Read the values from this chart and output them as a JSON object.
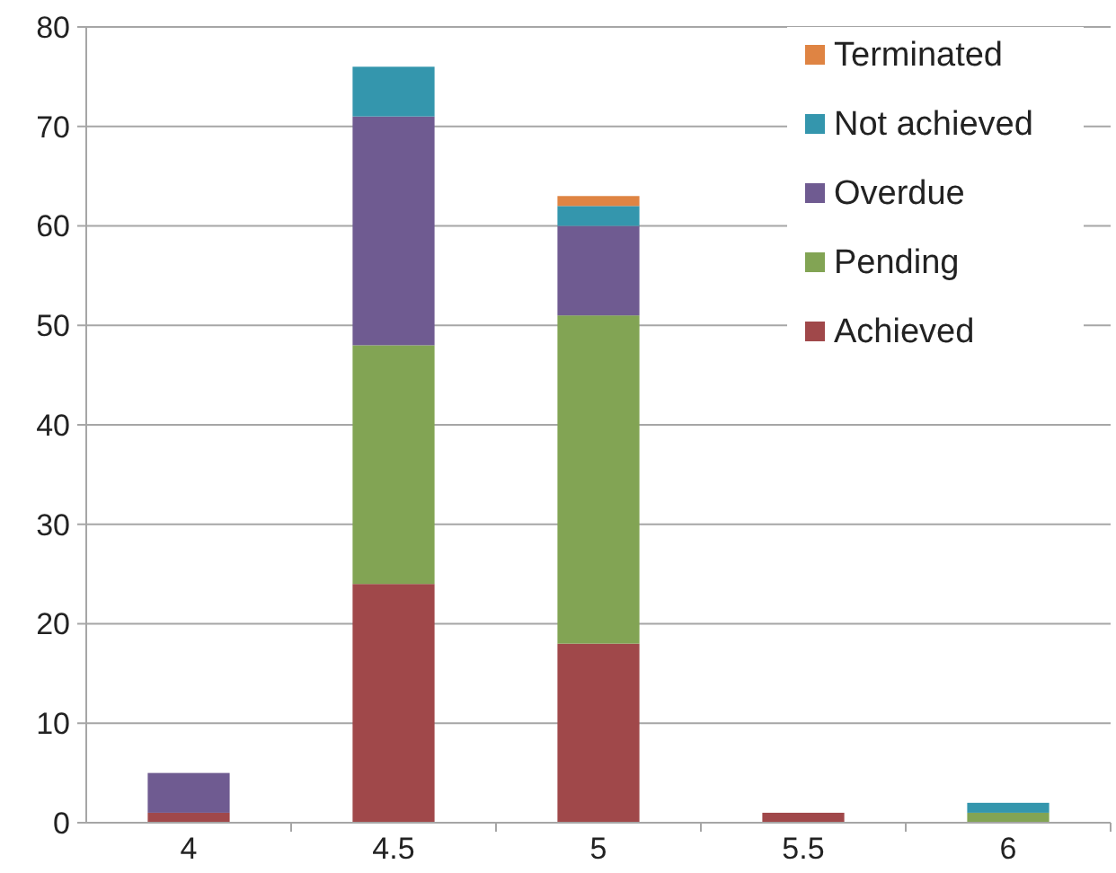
{
  "chart_data": {
    "type": "bar",
    "stacked": true,
    "categories": [
      "4",
      "4.5",
      "5",
      "5.5",
      "6"
    ],
    "series": [
      {
        "name": "Achieved",
        "color": "#a0484a",
        "values": [
          1,
          24,
          18,
          1,
          0
        ]
      },
      {
        "name": "Pending",
        "color": "#82a454",
        "values": [
          0,
          24,
          33,
          0,
          1
        ]
      },
      {
        "name": "Overdue",
        "color": "#6f5b91",
        "values": [
          4,
          23,
          9,
          0,
          0
        ]
      },
      {
        "name": "Not achieved",
        "color": "#3496ad",
        "values": [
          0,
          5,
          2,
          0,
          1
        ]
      },
      {
        "name": "Terminated",
        "color": "#df8443",
        "values": [
          0,
          0,
          1,
          0,
          0
        ]
      }
    ],
    "ylim": [
      0,
      80
    ],
    "yticks": [
      0,
      10,
      20,
      30,
      40,
      50,
      60,
      70,
      80
    ],
    "grid": "y",
    "legend": "top right"
  }
}
